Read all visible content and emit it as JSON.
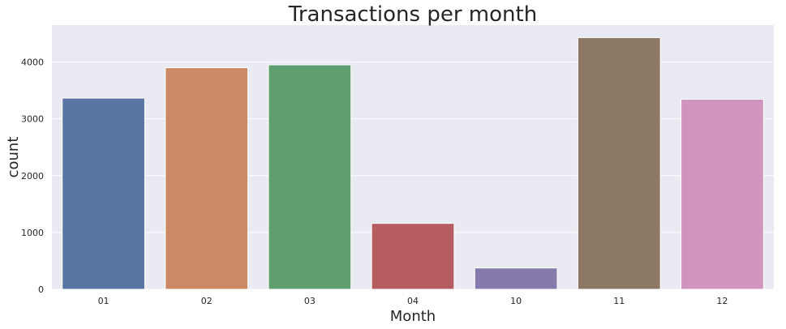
{
  "chart_data": {
    "type": "bar",
    "title": "Transactions per month",
    "xlabel": "Month",
    "ylabel": "count",
    "categories": [
      "01",
      "02",
      "03",
      "04",
      "10",
      "11",
      "12"
    ],
    "values": [
      3365,
      3900,
      3950,
      1160,
      375,
      4430,
      3345
    ],
    "ylim": [
      0,
      4650
    ],
    "yticks": [
      0,
      1000,
      2000,
      3000,
      4000
    ],
    "grid": true,
    "legend": "none",
    "colors": [
      "#5975a4",
      "#cc8963",
      "#5f9e6e",
      "#b55d60",
      "#857aab",
      "#8d7866",
      "#d095bf"
    ],
    "background": "#eaeaf2"
  }
}
